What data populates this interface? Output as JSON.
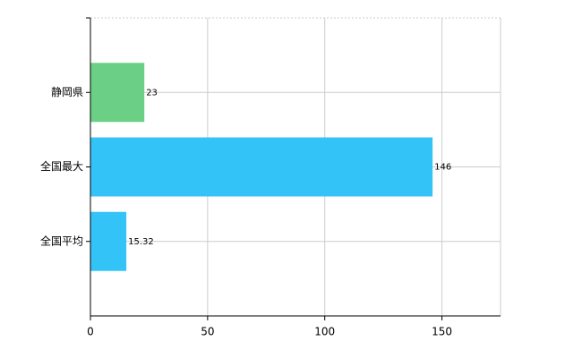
{
  "chart_data": {
    "type": "barh",
    "categories": [
      "静岡県",
      "全国最大",
      "全国平均"
    ],
    "values": [
      23,
      146,
      15.32
    ],
    "colors": [
      "#6ccf86",
      "#33c3f7",
      "#33c3f7"
    ],
    "xlim": [
      0,
      175
    ],
    "xticks": [
      0,
      50,
      100,
      150
    ],
    "grid": true
  }
}
